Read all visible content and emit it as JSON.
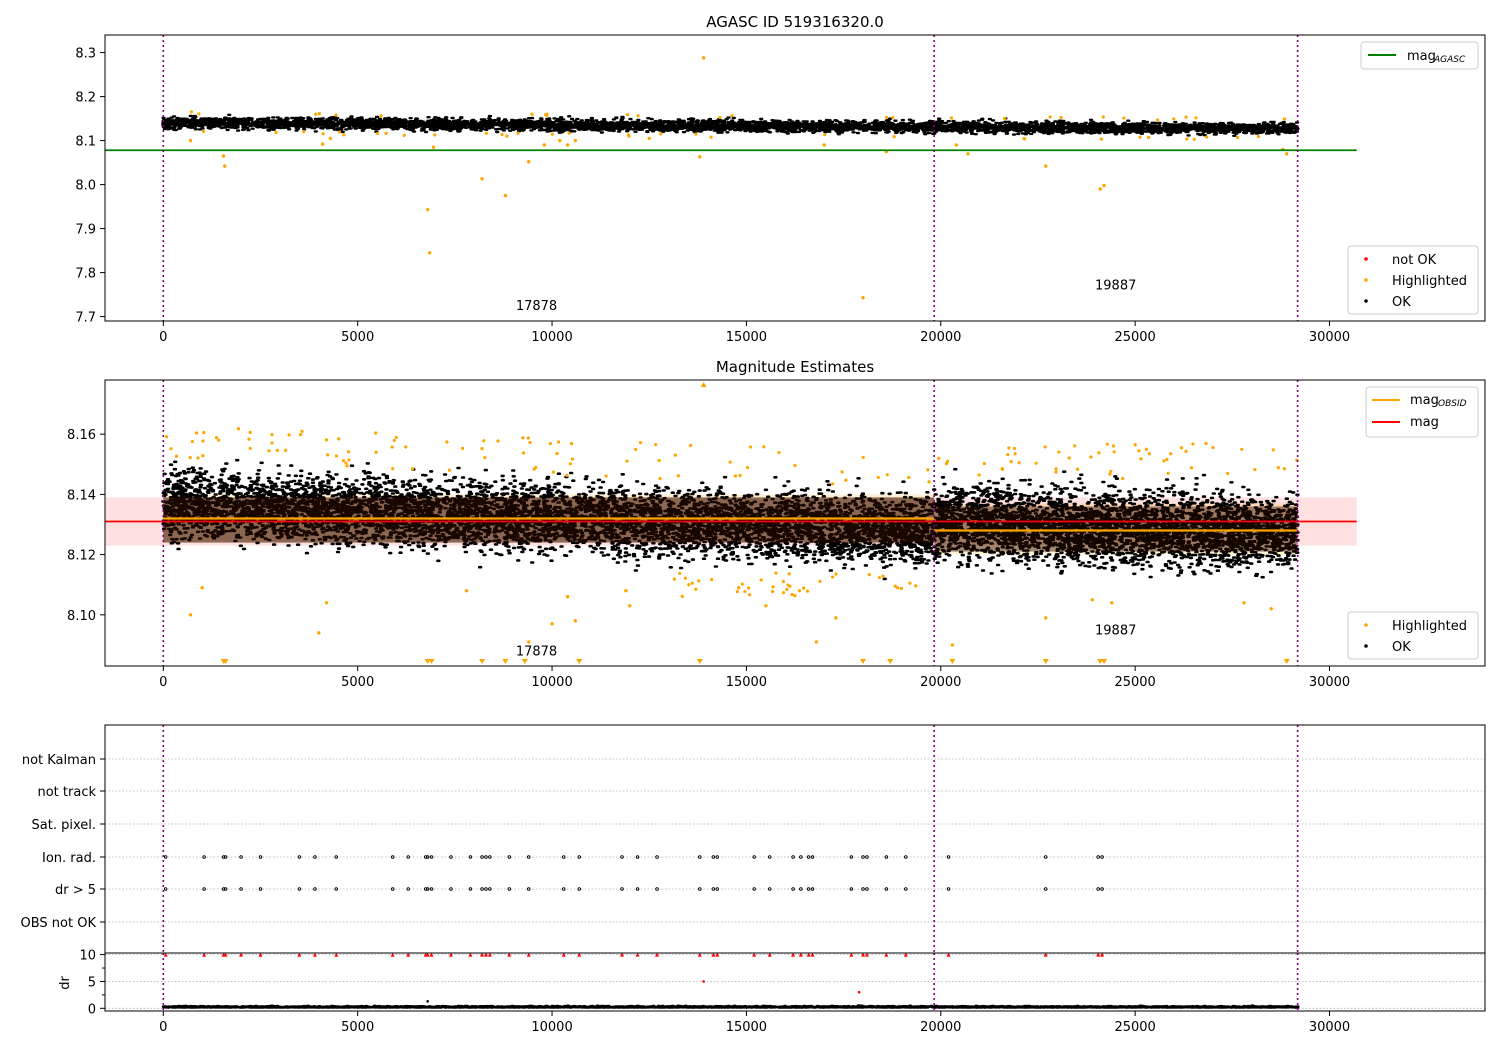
{
  "chart_data": [
    {
      "type": "scatter",
      "title": "AGASC ID 519316320.0",
      "xlabel": "",
      "ylabel": "",
      "xlim": [
        -1500,
        34000
      ],
      "ylim": [
        7.69,
        8.34
      ],
      "xticks": [
        "0",
        "5000",
        "10000",
        "15000",
        "20000",
        "25000",
        "30000"
      ],
      "yticks": [
        "7.7",
        "7.8",
        "7.9",
        "8.0",
        "8.1",
        "8.2",
        "8.3"
      ],
      "legend_upper": {
        "placement": "top-right",
        "entries": [
          {
            "label": "mag",
            "sub": "AGASC",
            "color": "#008000"
          }
        ]
      },
      "legend_lower": {
        "placement": "bottom-right",
        "entries": [
          {
            "label": "not OK",
            "color": "#ff0000"
          },
          {
            "label": "Highlighted",
            "color": "#ffa500"
          },
          {
            "label": "OK",
            "color": "#000000"
          }
        ]
      },
      "reference_line": {
        "y": 8.078,
        "x_range": [
          -1500,
          30700
        ],
        "color": "#008000"
      },
      "obsid_boundaries": [
        0,
        19830,
        29180
      ],
      "annotations": [
        {
          "text": "17878",
          "x": 9600,
          "y": 7.715
        },
        {
          "text": "19887",
          "x": 24500,
          "y": 7.762
        }
      ],
      "ok_band": {
        "x_range": [
          0,
          29180
        ],
        "y_start": 8.14,
        "y_end": 8.127,
        "spread": 0.012
      },
      "highlighted_points": [
        [
          700,
          8.1
        ],
        [
          1550,
          8.065
        ],
        [
          1580,
          8.042
        ],
        [
          4100,
          8.092
        ],
        [
          4300,
          8.105
        ],
        [
          6800,
          7.943
        ],
        [
          6850,
          7.845
        ],
        [
          6950,
          8.085
        ],
        [
          8200,
          8.013
        ],
        [
          8800,
          7.975
        ],
        [
          9400,
          8.052
        ],
        [
          9800,
          8.09
        ],
        [
          10200,
          8.1
        ],
        [
          10400,
          8.09
        ],
        [
          10600,
          8.1
        ],
        [
          12500,
          8.105
        ],
        [
          13800,
          8.063
        ],
        [
          13900,
          8.288
        ],
        [
          17000,
          8.09
        ],
        [
          18000,
          7.743
        ],
        [
          18600,
          8.075
        ],
        [
          20400,
          8.09
        ],
        [
          20700,
          8.07
        ],
        [
          22700,
          8.042
        ],
        [
          24100,
          7.99
        ],
        [
          24200,
          7.998
        ],
        [
          28800,
          8.08
        ],
        [
          28900,
          8.07
        ]
      ]
    },
    {
      "type": "scatter",
      "title": "Magnitude Estimates",
      "xlabel": "",
      "ylabel": "",
      "xlim": [
        -1500,
        34000
      ],
      "ylim": [
        8.083,
        8.178
      ],
      "xticks": [
        "0",
        "5000",
        "10000",
        "15000",
        "20000",
        "25000",
        "30000"
      ],
      "yticks": [
        "8.10",
        "8.12",
        "8.14",
        "8.16"
      ],
      "legend_upper": {
        "placement": "top-right",
        "entries": [
          {
            "label": "mag",
            "sub": "OBSID",
            "color": "#ffa500"
          },
          {
            "label": "mag",
            "sub": "",
            "color": "#ff0000"
          }
        ]
      },
      "legend_lower": {
        "placement": "bottom-right",
        "entries": [
          {
            "label": "Highlighted",
            "color": "#ffa500"
          },
          {
            "label": "OK",
            "color": "#000000"
          }
        ]
      },
      "mag_line": {
        "y": 8.131,
        "x_range": [
          -1500,
          30700
        ],
        "band": [
          8.123,
          8.139
        ],
        "color": "#ff0000"
      },
      "obsid_segments": [
        {
          "x_range": [
            0,
            19830
          ],
          "y": 8.132,
          "band": [
            8.124,
            8.14
          ]
        },
        {
          "x_range": [
            19830,
            29180
          ],
          "y": 8.128,
          "band": [
            8.12,
            8.137
          ]
        }
      ],
      "obsid_boundaries": [
        0,
        19830,
        29180
      ],
      "annotations": [
        {
          "text": "17878",
          "x": 9600,
          "y": 8.0865
        },
        {
          "text": "19887",
          "x": 24500,
          "y": 8.0935
        }
      ],
      "highlighted_points": [
        [
          700,
          8.1
        ],
        [
          1000,
          8.109
        ],
        [
          4000,
          8.094
        ],
        [
          4200,
          8.104
        ],
        [
          7800,
          8.108
        ],
        [
          9400,
          8.091
        ],
        [
          10000,
          8.097
        ],
        [
          10400,
          8.106
        ],
        [
          10600,
          8.098
        ],
        [
          11900,
          8.108
        ],
        [
          12000,
          8.103
        ],
        [
          14800,
          8.109
        ],
        [
          15500,
          8.103
        ],
        [
          16800,
          8.091
        ],
        [
          17300,
          8.099
        ],
        [
          20300,
          8.09
        ],
        [
          22700,
          8.099
        ],
        [
          23900,
          8.105
        ],
        [
          24400,
          8.104
        ],
        [
          27800,
          8.104
        ],
        [
          28500,
          8.102
        ]
      ],
      "below_range_markers": [
        1550,
        1600,
        6800,
        6900,
        8200,
        8800,
        9300,
        10700,
        13800,
        18000,
        18700,
        20300,
        22700,
        24100,
        24200,
        28900
      ],
      "above_range_markers": [
        13900
      ]
    },
    {
      "type": "scatter",
      "title": "",
      "xlabel": "",
      "ylabel": "",
      "xlim": [
        -1500,
        34000
      ],
      "xticks": [
        "0",
        "5000",
        "10000",
        "15000",
        "20000",
        "25000",
        "30000"
      ],
      "categories": [
        "not Kalman",
        "not track",
        "Sat. pixel.",
        "Ion. rad.",
        "dr > 5",
        "OBS not OK"
      ],
      "flag_x": [
        60,
        1050,
        1550,
        1600,
        2000,
        2500,
        3500,
        3900,
        4450,
        5900,
        6300,
        6750,
        6800,
        6900,
        7400,
        7900,
        8200,
        8300,
        8400,
        8900,
        9400,
        10300,
        10700,
        11800,
        12200,
        12700,
        13800,
        14150,
        14250,
        15200,
        15600,
        16200,
        16400,
        16600,
        16700,
        17700,
        18000,
        18100,
        18600,
        19100,
        20200,
        22700,
        24050,
        24150
      ]
    },
    {
      "type": "scatter",
      "title": "",
      "xlabel": "",
      "ylabel": "dr",
      "xlim": [
        -1500,
        34000
      ],
      "ylim": [
        -0.5,
        10.3
      ],
      "xticks": [
        "0",
        "5000",
        "10000",
        "15000",
        "20000",
        "25000",
        "30000"
      ],
      "yticks": [
        "0",
        "5",
        "10"
      ],
      "clipped_markers": [
        60,
        1050,
        1550,
        1600,
        2000,
        2500,
        3500,
        3900,
        4450,
        5900,
        6300,
        6750,
        6800,
        6900,
        7400,
        7900,
        8200,
        8300,
        8400,
        8900,
        9400,
        10300,
        10700,
        11800,
        12200,
        12700,
        13800,
        14150,
        14250,
        15200,
        15600,
        16200,
        16400,
        16600,
        16700,
        17700,
        18000,
        18100,
        18600,
        19100,
        20200,
        22700,
        24050,
        24150
      ],
      "outliers": [
        [
          13900,
          5.0
        ],
        [
          17900,
          3.0
        ],
        [
          6800,
          1.3
        ]
      ]
    }
  ],
  "colors": {
    "ok": "#000000",
    "highlighted": "#ffa500",
    "not_ok": "#ff0000",
    "agasc": "#008000",
    "boundary": "#800080",
    "grid": "#b0b0b0"
  }
}
